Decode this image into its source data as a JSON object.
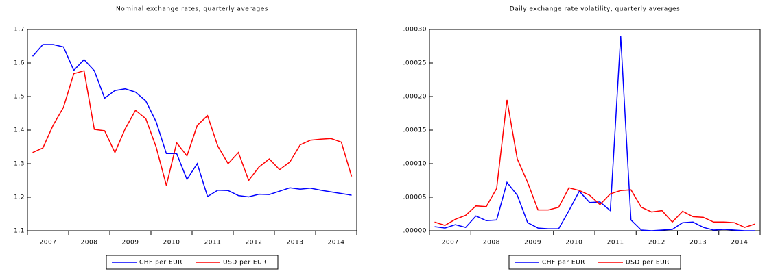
{
  "chart_data": [
    {
      "type": "line",
      "title": "Nominal exchange rates, quarterly averages",
      "categories": [
        "2007",
        null,
        null,
        null,
        "2008",
        null,
        null,
        null,
        "2009",
        null,
        null,
        null,
        "2010",
        null,
        null,
        null,
        "2011",
        null,
        null,
        null,
        "2012",
        null,
        null,
        null,
        "2013",
        null,
        null,
        null,
        "2014",
        null,
        null,
        null
      ],
      "series": [
        {
          "name": "CHF per EUR",
          "color": "#0000ff",
          "values": [
            1.62,
            1.655,
            1.655,
            1.648,
            1.578,
            1.61,
            1.577,
            1.495,
            1.518,
            1.523,
            1.513,
            1.487,
            1.425,
            1.33,
            1.33,
            1.253,
            1.3,
            1.202,
            1.221,
            1.22,
            1.205,
            1.201,
            1.209,
            1.208,
            1.218,
            1.228,
            1.224,
            1.227,
            1.221,
            1.216,
            1.211,
            1.206
          ]
        },
        {
          "name": "USD per EUR",
          "color": "#ff0000",
          "values": [
            1.333,
            1.347,
            1.415,
            1.468,
            1.568,
            1.577,
            1.402,
            1.398,
            1.333,
            1.404,
            1.459,
            1.434,
            1.35,
            1.235,
            1.362,
            1.323,
            1.414,
            1.443,
            1.352,
            1.3,
            1.333,
            1.25,
            1.29,
            1.314,
            1.282,
            1.305,
            1.356,
            1.37,
            1.373,
            1.375,
            1.364,
            1.262
          ]
        }
      ],
      "ylim": [
        1.1,
        1.7
      ],
      "yticks": [
        1.1,
        1.2,
        1.3,
        1.4,
        1.5,
        1.6,
        1.7
      ],
      "legend": "bottom"
    },
    {
      "type": "line",
      "title": "Daily exchange rate volatility, quarterly averages",
      "categories": [
        "2007",
        null,
        null,
        null,
        "2008",
        null,
        null,
        null,
        "2009",
        null,
        null,
        null,
        "2010",
        null,
        null,
        null,
        "2011",
        null,
        null,
        null,
        "2012",
        null,
        null,
        null,
        "2013",
        null,
        null,
        null,
        "2014",
        null,
        null,
        null
      ],
      "series": [
        {
          "name": "CHF per EUR",
          "color": "#0000ff",
          "values": [
            6e-06,
            4e-06,
            9e-06,
            5e-06,
            2.2e-05,
            1.5e-05,
            1.6e-05,
            7.2e-05,
            5.3e-05,
            1.2e-05,
            4e-06,
            3e-06,
            3e-06,
            3e-05,
            5.9e-05,
            4.2e-05,
            4.3e-05,
            3e-05,
            0.00029,
            1.6e-05,
            1e-06,
            0,
            1e-06,
            2e-06,
            1.2e-05,
            1.3e-05,
            5e-06,
            1e-06,
            2e-06,
            1e-06,
            0,
            0
          ]
        },
        {
          "name": "USD per EUR",
          "color": "#ff0000",
          "values": [
            1.3e-05,
            8e-06,
            1.7e-05,
            2.3e-05,
            3.7e-05,
            3.6e-05,
            6.3e-05,
            0.000195,
            0.000107,
            7.2e-05,
            3.1e-05,
            3.1e-05,
            3.5e-05,
            6.4e-05,
            6e-05,
            5.3e-05,
            3.9e-05,
            5.5e-05,
            6e-05,
            6.1e-05,
            3.5e-05,
            2.8e-05,
            3e-05,
            1.3e-05,
            2.9e-05,
            2.1e-05,
            2e-05,
            1.3e-05,
            1.3e-05,
            1.2e-05,
            5e-06,
            1e-05
          ]
        }
      ],
      "ylim": [
        0,
        0.0003
      ],
      "yticks": [
        {
          "value": 0,
          "label": ".00000"
        },
        {
          "value": 5e-05,
          "label": ".00005"
        },
        {
          "value": 0.0001,
          "label": ".00010"
        },
        {
          "value": 0.00015,
          "label": ".00015"
        },
        {
          "value": 0.0002,
          "label": ".00020"
        },
        {
          "value": 0.00025,
          "label": ".00025"
        },
        {
          "value": 0.0003,
          "label": ".00030"
        }
      ],
      "legend": "bottom"
    }
  ]
}
